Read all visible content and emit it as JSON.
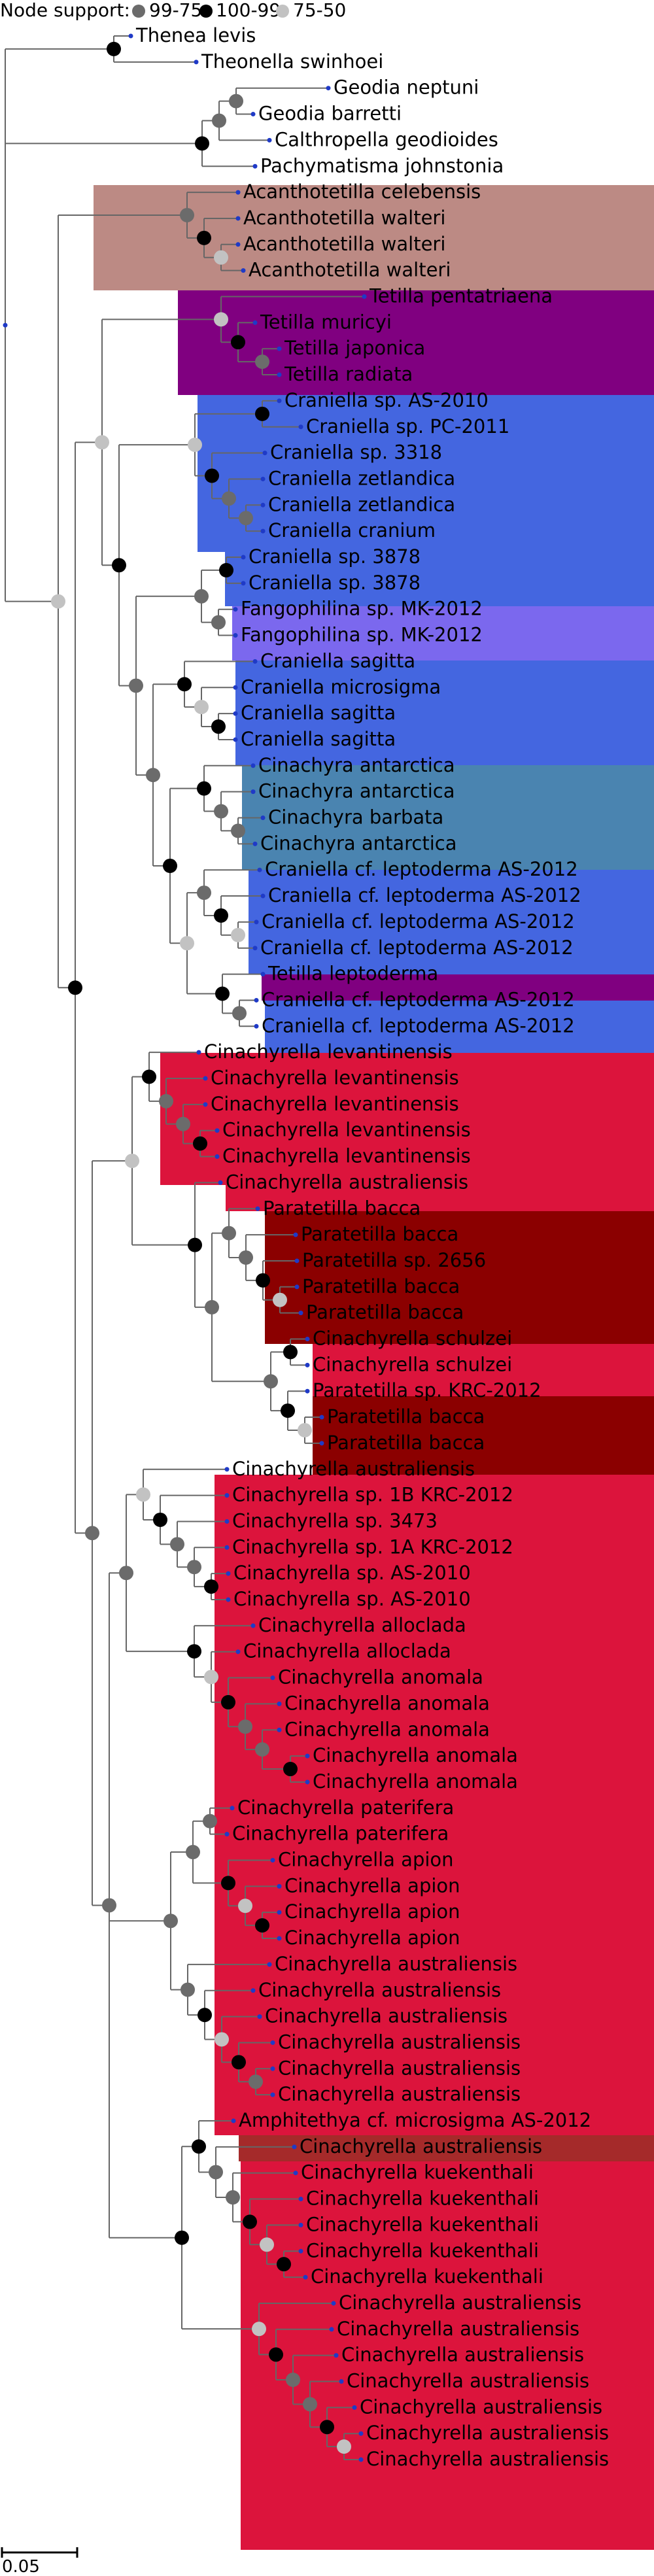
{
  "legend": {
    "title": "Node support:",
    "items": [
      {
        "label": "99-75",
        "color": "#6b6b6b"
      },
      {
        "label": "100-99",
        "color": "#000000"
      },
      {
        "label": "75-50",
        "color": "#c2c2c2"
      }
    ]
  },
  "scale_bar": {
    "label": "0.05"
  },
  "colors": {
    "branch": "#666666",
    "tip_dot": "#1f3ac7",
    "dot_high": "#000000",
    "dot_mid": "#6b6b6b",
    "dot_low": "#c2c2c2",
    "clade_brown": "#bc8a84",
    "clade_purple": "#800080",
    "clade_blue": "#4466e0",
    "clade_violet": "#7b68ee",
    "clade_steel": "#4a84b0",
    "clade_crimson": "#dc143c",
    "clade_darkred": "#8b0000",
    "clade_rust": "#a52a2a"
  },
  "taxa": [
    "Thenea levis",
    "Theonella swinhoei",
    "Geodia neptuni",
    "Geodia barretti",
    "Calthropella geodioides",
    "Pachymatisma johnstonia",
    "Acanthotetilla celebensis",
    "Acanthotetilla walteri",
    "Acanthotetilla walteri",
    "Acanthotetilla walteri",
    "Tetilla pentatriaena",
    "Tetilla muricyi",
    "Tetilla japonica",
    "Tetilla radiata",
    "Craniella sp. AS-2010",
    "Craniella sp. PC-2011",
    "Craniella sp. 3318",
    "Craniella zetlandica",
    "Craniella zetlandica",
    "Craniella cranium",
    "Craniella sp. 3878",
    "Craniella sp. 3878",
    "Fangophilina sp. MK-2012",
    "Fangophilina sp. MK-2012",
    "Craniella sagitta",
    "Craniella microsigma",
    "Craniella sagitta",
    "Craniella sagitta",
    "Cinachyra antarctica",
    "Cinachyra antarctica",
    "Cinachyra barbata",
    "Cinachyra antarctica",
    "Craniella cf. leptoderma AS-2012",
    "Craniella cf. leptoderma AS-2012",
    "Craniella cf. leptoderma AS-2012",
    "Craniella cf. leptoderma AS-2012",
    "Tetilla leptoderma",
    "Craniella cf. leptoderma AS-2012",
    "Craniella cf. leptoderma AS-2012",
    "Cinachyrella levantinensis",
    "Cinachyrella levantinensis",
    "Cinachyrella levantinensis",
    "Cinachyrella levantinensis",
    "Cinachyrella levantinensis",
    "Cinachyrella australiensis",
    "Paratetilla bacca",
    "Paratetilla bacca",
    "Paratetilla sp. 2656",
    "Paratetilla bacca",
    "Paratetilla bacca",
    "Cinachyrella schulzei",
    "Cinachyrella schulzei",
    "Paratetilla sp. KRC-2012",
    "Paratetilla bacca",
    "Paratetilla bacca",
    "Cinachyrella australiensis",
    "Cinachyrella sp. 1B KRC-2012",
    "Cinachyrella sp. 3473",
    "Cinachyrella sp. 1A KRC-2012",
    "Cinachyrella sp. AS-2010",
    "Cinachyrella sp. AS-2010",
    "Cinachyrella alloclada",
    "Cinachyrella alloclada",
    "Cinachyrella anomala",
    "Cinachyrella anomala",
    "Cinachyrella anomala",
    "Cinachyrella anomala",
    "Cinachyrella anomala",
    "Cinachyrella paterifera",
    "Cinachyrella paterifera",
    "Cinachyrella apion",
    "Cinachyrella apion",
    "Cinachyrella apion",
    "Cinachyrella apion",
    "Cinachyrella australiensis",
    "Cinachyrella australiensis",
    "Cinachyrella australiensis",
    "Cinachyrella australiensis",
    "Cinachyrella australiensis",
    "Cinachyrella australiensis",
    "Amphitethya cf. microsigma AS-2012",
    "Cinachyrella australiensis",
    "Cinachyrella kuekenthali",
    "Cinachyrella kuekenthali",
    "Cinachyrella kuekenthali",
    "Cinachyrella kuekenthali",
    "Cinachyrella kuekenthali",
    "Cinachyrella australiensis",
    "Cinachyrella australiensis",
    "Cinachyrella australiensis",
    "Cinachyrella australiensis",
    "Cinachyrella australiensis",
    "Cinachyrella australiensis",
    "Cinachyrella australiensis"
  ],
  "tree": "((((((0,1),((((2,3),4),5)),((6,(7,(8,9))),(((10,(11,(12,13))),((((14,15),(16,(17,(18,19)))),(((20,21),(22,23)),(((24,(25,(26,27))),((28,(29,(30,31))),((32,(33,(34,35))),(36,(37,38)))))))))),((((39,(40,(41,(42,43)))),((44,((45,(46,(47,(48,49)))),((50,51),(52,(53,54)))))))),((((55,(56,(57,(58,(59,60))))),((61,(62,(63,(64,(65,(66,67))))))))),(((68,69),((70,(71,(72,73))))),((74,(75,(76,(77,(78,79))))))),((80,(81,(82,(83,(84,(85,86)))))),(87,(88,(89,(90,(91,(92,93)))))))))))))))"
}
